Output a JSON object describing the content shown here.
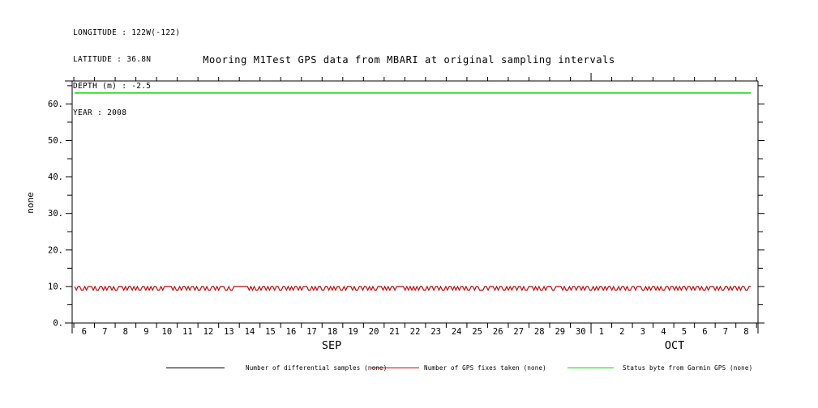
{
  "header": {
    "lines": [
      "LONGITUDE : 122W(-122)",
      "LATITUDE : 36.8N",
      "DEPTH (m) : -2.5",
      "YEAR : 2008"
    ]
  },
  "legend": {
    "items": [
      {
        "label": "Number of differential samples (none)",
        "color": "#000000"
      },
      {
        "label": "Number of GPS fixes taken (none)",
        "color": "#e60000"
      },
      {
        "label": "Status byte from Garmin GPS (none)",
        "color": "#00dd00"
      }
    ]
  },
  "chart_data": {
    "type": "line",
    "title": "Mooring M1Test GPS data from MBARI at original sampling intervals",
    "ylabel": "none",
    "year_shown": "2008",
    "ylim": [
      0,
      66.3
    ],
    "y_major_ticks": [
      0,
      10,
      20,
      30,
      40,
      50,
      60
    ],
    "y_tick_labels": [
      "0.",
      "10.",
      "20.",
      "30.",
      "40.",
      "50.",
      "60."
    ],
    "y_minor_step": 5,
    "grid": "off",
    "legend_position": "bottom",
    "x_axis": {
      "xlim_days": [
        -0.08,
        33.07
      ],
      "day_boundary_count": 34,
      "day_labels": [
        "6",
        "7",
        "8",
        "9",
        "10",
        "11",
        "12",
        "13",
        "14",
        "15",
        "16",
        "17",
        "18",
        "19",
        "20",
        "21",
        "22",
        "23",
        "24",
        "25",
        "26",
        "27",
        "28",
        "29",
        "30",
        "1",
        "2",
        "3",
        "4",
        "5",
        "6",
        "7",
        "8"
      ],
      "month_boundary_index": 25,
      "month_labels": [
        "SEP",
        "OCT"
      ]
    },
    "data_start_day": 0.04,
    "data_end_day": 32.72,
    "series": [
      {
        "name": "Number of differential samples (none)",
        "color": "#000000",
        "values_same_as_series_index": 1
      },
      {
        "name": "Number of GPS fixes taken (none)",
        "color": "#e60000",
        "values": [
          10,
          9,
          10,
          10,
          9,
          9,
          10,
          9,
          10,
          10,
          10,
          9,
          10,
          9,
          9,
          10,
          10,
          9,
          10,
          9,
          10,
          10,
          9,
          10,
          9,
          9,
          10,
          10,
          10,
          9,
          10,
          9,
          10,
          10,
          9,
          10,
          9,
          10,
          9,
          9,
          10,
          10,
          9,
          10,
          9,
          10,
          9,
          10,
          10,
          9,
          9,
          10,
          9,
          10,
          10,
          10,
          10,
          10,
          9,
          10,
          9,
          9,
          10,
          9,
          10,
          10,
          9,
          10,
          9,
          10,
          10,
          9,
          10,
          9,
          9,
          10,
          10,
          9,
          10,
          9,
          9,
          10,
          10,
          9,
          10,
          9,
          10,
          10,
          10,
          9,
          9,
          10,
          9,
          9,
          10,
          10,
          10,
          10,
          10,
          10,
          10,
          10,
          10,
          9,
          10,
          9,
          10,
          9,
          9,
          10,
          9,
          10,
          10,
          9,
          10,
          9,
          10,
          10,
          9,
          10,
          10,
          9,
          9,
          10,
          10,
          9,
          10,
          9,
          10,
          9,
          10,
          10,
          9,
          10,
          9,
          10,
          10,
          10,
          9,
          9,
          10,
          9,
          10,
          9,
          10,
          10,
          9,
          9,
          10,
          10,
          9,
          10,
          9,
          10,
          9,
          10,
          10,
          9,
          9,
          10,
          9,
          10,
          10,
          10,
          9,
          10,
          9,
          9,
          10,
          10,
          9,
          10,
          10,
          9,
          10,
          9,
          10,
          9,
          9,
          10,
          10,
          10,
          9,
          10,
          9,
          10,
          9,
          10,
          10,
          9,
          10,
          10,
          10,
          10,
          10,
          9,
          10,
          9,
          10,
          9,
          10,
          9,
          10,
          9,
          10,
          10,
          9,
          9,
          10,
          9,
          10,
          10,
          9,
          10,
          10,
          9,
          10,
          9,
          9,
          10,
          9,
          10,
          10,
          9,
          10,
          9,
          10,
          9,
          10,
          10,
          9,
          10,
          9,
          9,
          10,
          10,
          9,
          10,
          10,
          9,
          9,
          9,
          10,
          10,
          9,
          10,
          10,
          10,
          9,
          10,
          9,
          10,
          10,
          9,
          9,
          10,
          9,
          10,
          9,
          10,
          10,
          9,
          10,
          10,
          9,
          10,
          9,
          9,
          10,
          10,
          10,
          9,
          10,
          9,
          10,
          9,
          9,
          10,
          9,
          10,
          10,
          10,
          9,
          9,
          10,
          10,
          10,
          10,
          9,
          10,
          9,
          9,
          10,
          9,
          10,
          10,
          9,
          10,
          10,
          9,
          10,
          9,
          10,
          10,
          9,
          9,
          10,
          9,
          10,
          9,
          10,
          10,
          9,
          10,
          9,
          10,
          10,
          9,
          10,
          9,
          9,
          10,
          9,
          10,
          10,
          9,
          10,
          9,
          9,
          10,
          10,
          9,
          10,
          10,
          10,
          9,
          9,
          10,
          9,
          10,
          9,
          10,
          10,
          9,
          10,
          9,
          10,
          9,
          9,
          10,
          10,
          9,
          10,
          10,
          9,
          10,
          9,
          10,
          9,
          10,
          10,
          9,
          10,
          10,
          9,
          10,
          9,
          10,
          10,
          9,
          10,
          9,
          9,
          10,
          9,
          10,
          10,
          10,
          9,
          10,
          9,
          10,
          9,
          9,
          10,
          10,
          9,
          10,
          9,
          10,
          10,
          9,
          10,
          9,
          10,
          10,
          9,
          9,
          10,
          10
        ]
      },
      {
        "name": "Status byte from Garmin GPS (none)",
        "color": "#00dd00",
        "constant_value": 63
      }
    ]
  }
}
